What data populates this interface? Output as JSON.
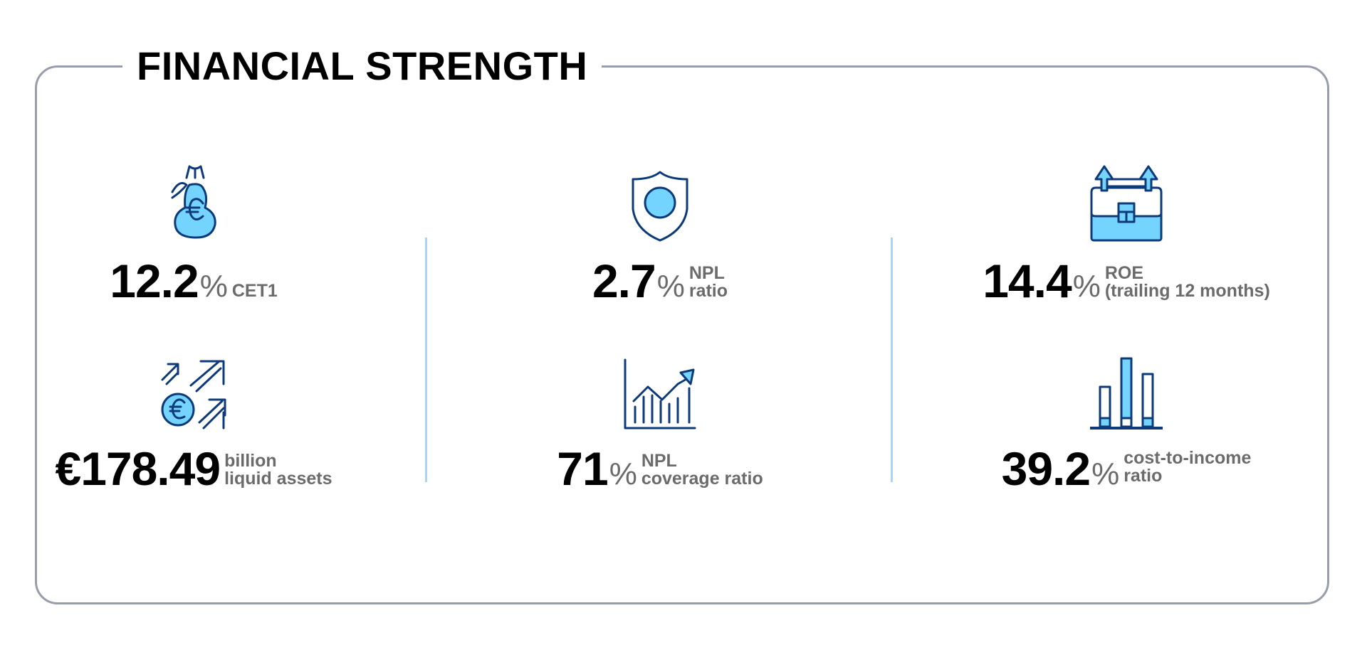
{
  "title": "FINANCIAL STRENGTH",
  "colors": {
    "icon_fill": "#74d4fe",
    "icon_stroke": "#0d3a7a",
    "divider": "#a9d3f7",
    "frame": "#979dab",
    "label": "#6b6b6b"
  },
  "metrics": [
    {
      "icon": "money-bag-euro-icon",
      "prefix": "",
      "value": "12.2",
      "unit": "%",
      "label_lines": [
        "CET1"
      ]
    },
    {
      "icon": "shield-icon",
      "prefix": "",
      "value": "2.7",
      "unit": "%",
      "label_lines": [
        "NPL",
        "ratio"
      ]
    },
    {
      "icon": "briefcase-arrows-up-icon",
      "prefix": "",
      "value": "14.4",
      "unit": "%",
      "label_lines": [
        "ROE",
        "(trailing 12 months)"
      ]
    },
    {
      "icon": "euro-growth-arrows-icon",
      "prefix": "€",
      "value": "178.49",
      "unit": "",
      "label_lines": [
        "billion",
        "liquid assets"
      ]
    },
    {
      "icon": "line-bar-chart-up-icon",
      "prefix": "",
      "value": "71",
      "unit": "%",
      "label_lines": [
        "NPL",
        "coverage ratio"
      ]
    },
    {
      "icon": "bar-chart-icon",
      "prefix": "",
      "value": "39.2",
      "unit": "%",
      "label_lines": [
        "cost-to-income",
        "ratio"
      ]
    }
  ]
}
